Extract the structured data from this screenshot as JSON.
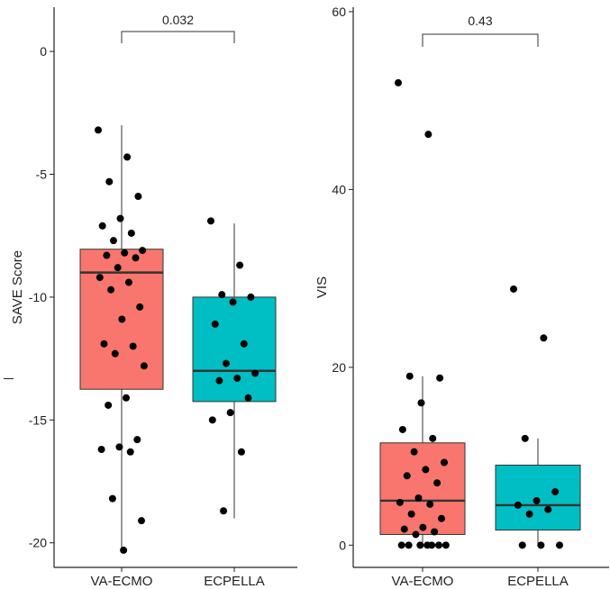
{
  "chart_data": [
    {
      "type": "box",
      "title": "",
      "xlabel": "",
      "ylabel": "SAVE Score",
      "ylim": [
        -21,
        1.8
      ],
      "yticks": [
        0,
        -5,
        -10,
        -15,
        -20
      ],
      "categories": [
        "VA-ECMO",
        "ECPELLA"
      ],
      "colors": [
        "#F8766D",
        "#00BFC4"
      ],
      "boxes": [
        {
          "group": "VA-ECMO",
          "whisker_low": -20.3,
          "q1": -13.75,
          "median": -9.0,
          "q3": -8.05,
          "whisker_high": -3.0
        },
        {
          "group": "ECPELLA",
          "whisker_low": -19.0,
          "q1": -14.25,
          "median": -13.0,
          "q3": -10.0,
          "whisker_high": -7.0
        }
      ],
      "points": [
        {
          "group": "VA-ECMO",
          "values": [
            -3.2,
            -4.3,
            -5.3,
            -5.9,
            -6.8,
            -7.1,
            -7.4,
            -7.7,
            -8.1,
            -8.2,
            -8.3,
            -8.4,
            -8.8,
            -9.2,
            -9.4,
            -9.7,
            -10.4,
            -10.9,
            -11.9,
            -12.0,
            -12.3,
            -12.8,
            -14.1,
            -14.4,
            -15.8,
            -16.1,
            -16.2,
            -16.3,
            -18.2,
            -19.1,
            -20.3
          ]
        },
        {
          "group": "ECPELLA",
          "values": [
            -6.9,
            -8.7,
            -9.9,
            -10.0,
            -10.2,
            -11.1,
            -11.9,
            -12.7,
            -13.1,
            -13.3,
            -13.4,
            -14.1,
            -14.7,
            -15.0,
            -16.3,
            -18.7
          ]
        }
      ],
      "comparison": {
        "label": "0.032"
      }
    },
    {
      "type": "box",
      "title": "",
      "xlabel": "",
      "ylabel": "VIS",
      "ylim": [
        -2.5,
        60.5
      ],
      "yticks": [
        0,
        20,
        40,
        60
      ],
      "categories": [
        "VA-ECMO",
        "ECPELLA"
      ],
      "colors": [
        "#F8766D",
        "#00BFC4"
      ],
      "boxes": [
        {
          "group": "VA-ECMO",
          "whisker_low": 0,
          "q1": 1.2,
          "median": 5.0,
          "q3": 11.5,
          "whisker_high": 19.0
        },
        {
          "group": "ECPELLA",
          "whisker_low": 0,
          "q1": 1.7,
          "median": 4.5,
          "q3": 9.0,
          "whisker_high": 12.0
        }
      ],
      "points": [
        {
          "group": "VA-ECMO",
          "values": [
            52,
            46.2,
            19.0,
            18.8,
            16.0,
            13.0,
            12.0,
            10.5,
            9.3,
            8.5,
            7.8,
            7.0,
            5.3,
            4.8,
            4.6,
            3.5,
            3.0,
            2.0,
            1.8,
            1.5,
            1.2,
            0,
            0,
            0,
            0,
            0,
            0,
            0
          ]
        },
        {
          "group": "ECPELLA",
          "values": [
            28.8,
            23.3,
            12.0,
            6.0,
            5.0,
            4.5,
            4.0,
            3.5,
            0,
            0,
            0
          ]
        }
      ],
      "comparison": {
        "label": "0.43"
      }
    }
  ]
}
